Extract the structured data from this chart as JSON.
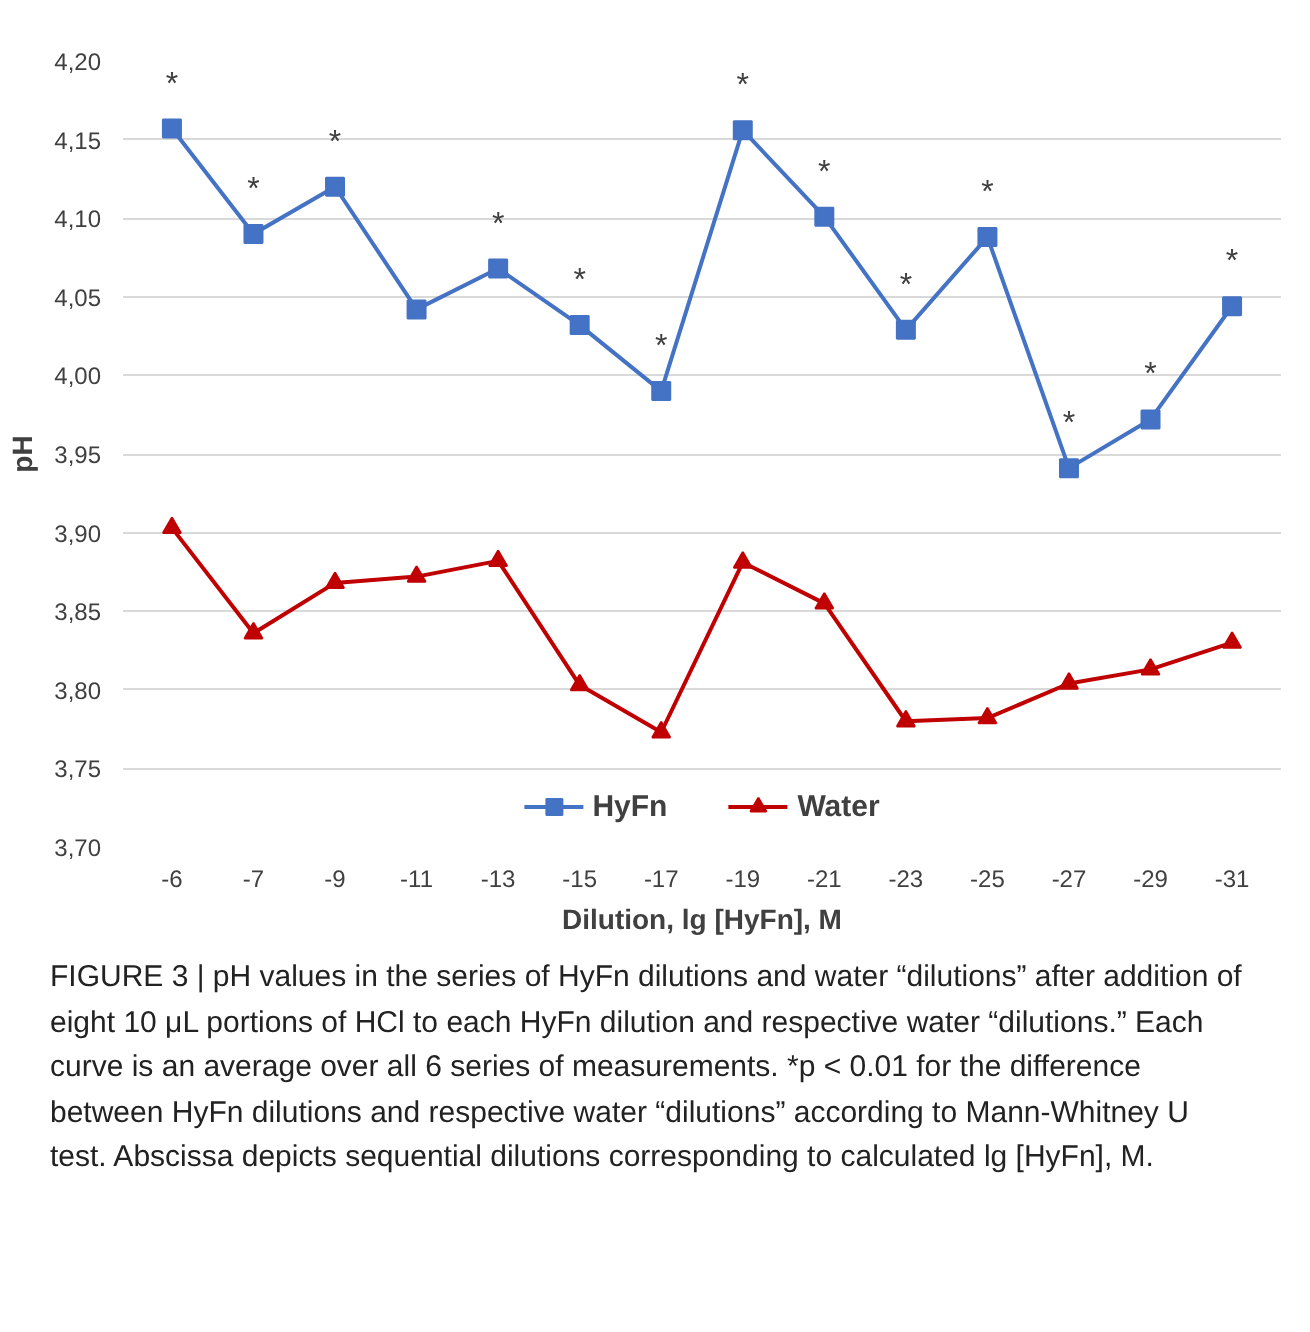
{
  "chart_data": {
    "type": "line",
    "xlabel": "Dilution, lg [HyFn], M",
    "ylabel": "pH",
    "categories": [
      "-6",
      "-7",
      "-9",
      "-11",
      "-13",
      "-15",
      "-17",
      "-19",
      "-21",
      "-23",
      "-25",
      "-27",
      "-29",
      "-31"
    ],
    "series": [
      {
        "name": "HyFn",
        "color": "#4472c4",
        "marker": "square",
        "values": [
          4.157,
          4.09,
          4.12,
          4.042,
          4.068,
          4.032,
          3.99,
          4.156,
          4.101,
          4.029,
          4.088,
          3.941,
          3.972,
          4.044
        ]
      },
      {
        "name": "Water",
        "color": "#c00000",
        "marker": "triangle",
        "values": [
          3.903,
          3.836,
          3.868,
          3.872,
          3.882,
          3.803,
          3.773,
          3.881,
          3.855,
          3.78,
          3.782,
          3.804,
          3.813,
          3.83
        ]
      }
    ],
    "ylim": [
      3.7,
      4.2
    ],
    "yticks": [
      {
        "value": 3.7,
        "label": "3,70"
      },
      {
        "value": 3.75,
        "label": "3,75"
      },
      {
        "value": 3.8,
        "label": "3,80"
      },
      {
        "value": 3.85,
        "label": "3,85"
      },
      {
        "value": 3.9,
        "label": "3,90"
      },
      {
        "value": 3.95,
        "label": "3,95"
      },
      {
        "value": 4.0,
        "label": "4,00"
      },
      {
        "value": 4.05,
        "label": "4,05"
      },
      {
        "value": 4.1,
        "label": "4,10"
      },
      {
        "value": 4.15,
        "label": "4,15"
      },
      {
        "value": 4.2,
        "label": "4,20"
      }
    ],
    "grid": "y",
    "legend": "bottom",
    "annotations": [
      {
        "text": "*",
        "x": "-6",
        "y": 4.157
      },
      {
        "text": "*",
        "x": "-7",
        "y": 4.09
      },
      {
        "text": "*",
        "x": "-9",
        "y": 4.12
      },
      {
        "text": "*",
        "x": "-13",
        "y": 4.068
      },
      {
        "text": "*",
        "x": "-15",
        "y": 4.032
      },
      {
        "text": "*",
        "x": "-17",
        "y": 3.99
      },
      {
        "text": "*",
        "x": "-19",
        "y": 4.156
      },
      {
        "text": "*",
        "x": "-21",
        "y": 4.101
      },
      {
        "text": "*",
        "x": "-23",
        "y": 4.029
      },
      {
        "text": "*",
        "x": "-25",
        "y": 4.088
      },
      {
        "text": "*",
        "x": "-27",
        "y": 3.941
      },
      {
        "text": "*",
        "x": "-29",
        "y": 3.972
      },
      {
        "text": "*",
        "x": "-31",
        "y": 4.044
      },
      "FIGURE 3 | pH values in the series of HyFn dilutions and water “dilutions” after addition of eight 10 μL portions of HCl to each HyFn dilution and respective water “dilutions.” Each curve is an average over all 6 series of measurements. *p < 0.01 for the difference between HyFn dilutions and respective water “dilutions” according to Mann-Whitney U test. Abscissa depicts sequential dilutions corresponding to calculated lg [HyFn], M."
    ]
  }
}
